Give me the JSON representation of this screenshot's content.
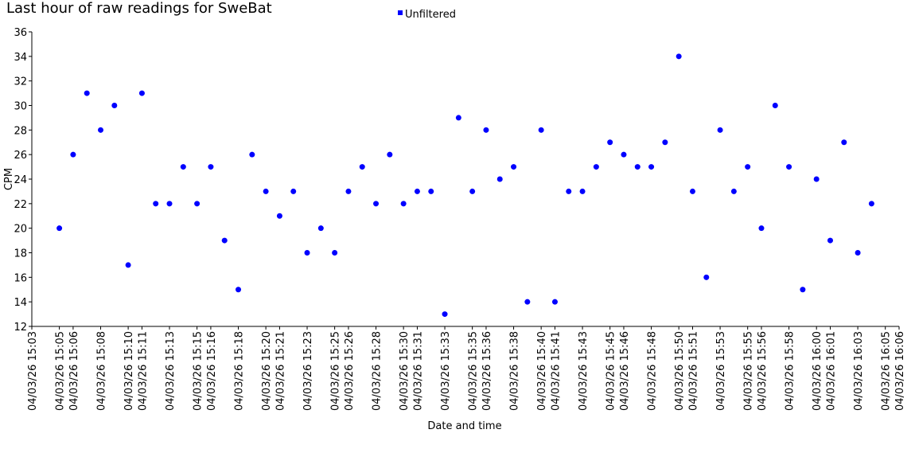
{
  "chart_data": {
    "type": "scatter",
    "title": "Last hour of raw readings for SweBat",
    "x_label": "Date and time",
    "y_label": "CPM",
    "x": [
      "04/03/26 15:05",
      "04/03/26 15:06",
      "04/03/26 15:07",
      "04/03/26 15:08",
      "04/03/26 15:09",
      "04/03/26 15:10",
      "04/03/26 15:11",
      "04/03/26 15:12",
      "04/03/26 15:13",
      "04/03/26 15:14",
      "04/03/26 15:15",
      "04/03/26 15:16",
      "04/03/26 15:17",
      "04/03/26 15:18",
      "04/03/26 15:19",
      "04/03/26 15:20",
      "04/03/26 15:21",
      "04/03/26 15:22",
      "04/03/26 15:23",
      "04/03/26 15:24",
      "04/03/26 15:25",
      "04/03/26 15:26",
      "04/03/26 15:27",
      "04/03/26 15:28",
      "04/03/26 15:29",
      "04/03/26 15:30",
      "04/03/26 15:31",
      "04/03/26 15:32",
      "04/03/26 15:33",
      "04/03/26 15:34",
      "04/03/26 15:35",
      "04/03/26 15:36",
      "04/03/26 15:37",
      "04/03/26 15:38",
      "04/03/26 15:39",
      "04/03/26 15:40",
      "04/03/26 15:41",
      "04/03/26 15:42",
      "04/03/26 15:43",
      "04/03/26 15:44",
      "04/03/26 15:45",
      "04/03/26 15:46",
      "04/03/26 15:47",
      "04/03/26 15:48",
      "04/03/26 15:49",
      "04/03/26 15:50",
      "04/03/26 15:51",
      "04/03/26 15:52",
      "04/03/26 15:53",
      "04/03/26 15:54",
      "04/03/26 15:55",
      "04/03/26 15:56",
      "04/03/26 15:57",
      "04/03/26 15:58",
      "04/03/26 15:59",
      "04/03/26 16:00",
      "04/03/26 16:01",
      "04/03/26 16:02",
      "04/03/26 16:03",
      "04/03/26 16:04"
    ],
    "series": [
      {
        "name": "Unfiltered",
        "color": "#0000ff",
        "values": [
          20,
          26,
          31,
          28,
          30,
          17,
          31,
          22,
          22,
          25,
          22,
          25,
          19,
          15,
          26,
          23,
          21,
          23,
          18,
          20,
          18,
          23,
          25,
          22,
          26,
          22,
          23,
          23,
          13,
          29,
          23,
          28,
          24,
          25,
          14,
          28,
          14,
          23,
          23,
          25,
          27,
          26,
          25,
          25,
          27,
          34,
          23,
          16,
          28,
          23,
          25,
          20,
          30,
          25,
          15,
          24,
          19,
          27,
          18,
          22
        ]
      }
    ],
    "xlim": [
      "04/03/26 15:03",
      "04/03/26 16:06"
    ],
    "xticks": [
      "04/03/26 15:03",
      "04/03/26 15:05",
      "04/03/26 15:06",
      "04/03/26 15:08",
      "04/03/26 15:10",
      "04/03/26 15:11",
      "04/03/26 15:13",
      "04/03/26 15:15",
      "04/03/26 15:16",
      "04/03/26 15:18",
      "04/03/26 15:20",
      "04/03/26 15:21",
      "04/03/26 15:23",
      "04/03/26 15:25",
      "04/03/26 15:26",
      "04/03/26 15:28",
      "04/03/26 15:30",
      "04/03/26 15:31",
      "04/03/26 15:33",
      "04/03/26 15:35",
      "04/03/26 15:36",
      "04/03/26 15:38",
      "04/03/26 15:40",
      "04/03/26 15:41",
      "04/03/26 15:43",
      "04/03/26 15:45",
      "04/03/26 15:46",
      "04/03/26 15:48",
      "04/03/26 15:50",
      "04/03/26 15:51",
      "04/03/26 15:53",
      "04/03/26 15:55",
      "04/03/26 15:56",
      "04/03/26 15:58",
      "04/03/26 16:00",
      "04/03/26 16:01",
      "04/03/26 16:03",
      "04/03/26 16:05",
      "04/03/26 16:06"
    ],
    "ylim": [
      12,
      36
    ],
    "yticks": [
      12,
      14,
      16,
      18,
      20,
      22,
      24,
      26,
      28,
      30,
      32,
      34,
      36
    ],
    "legend": "top",
    "grid": false
  }
}
